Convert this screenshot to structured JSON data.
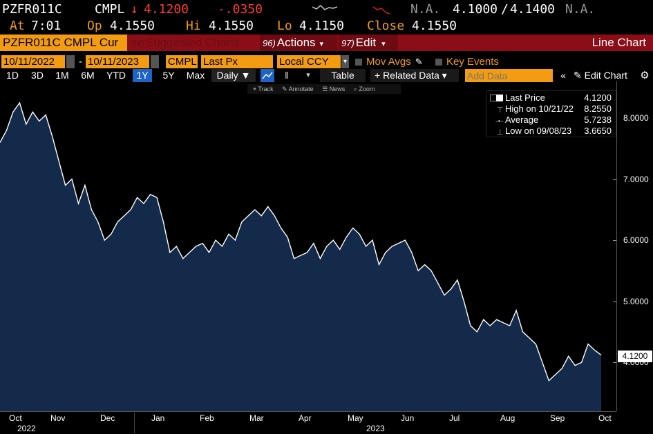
{
  "ticker": {
    "symbol": "PZFR011C",
    "source": "CMPL",
    "direction_arrow": "↓",
    "last": "4.1200",
    "change": "-.0350",
    "na1": "N.A.",
    "bid": "4.1000",
    "slash": "/",
    "ask": "4.1400",
    "na2": "N.A."
  },
  "ticker_row2": {
    "at_label": "At",
    "at_value": "7:01",
    "op_label": "Op",
    "op_value": "4.1550",
    "hi_label": "Hi",
    "hi_value": "4.1550",
    "lo_label": "Lo",
    "lo_value": "4.1150",
    "close_label": "Close",
    "close_value": "4.1550"
  },
  "menubar": {
    "security": "PZFR011C CMPL Cur",
    "suggest_num": "94)",
    "suggest": "Suggested Charts",
    "actions_num": "96)",
    "actions": "Actions",
    "edit_num": "97)",
    "edit": "Edit",
    "title": "Line Chart"
  },
  "controls": {
    "start_date": "10/11/2022",
    "dash": "-",
    "end_date": "10/11/2023",
    "source": "CMPL",
    "field": "Last Px",
    "currency": "Local CCY",
    "mov_avgs": "Mov Avgs",
    "key_events": "Key Events"
  },
  "ranges": [
    "1D",
    "3D",
    "1M",
    "6M",
    "YTD",
    "1Y",
    "5Y",
    "Max"
  ],
  "range_selected": "1Y",
  "periodicity": "Daily ▼",
  "table_label": "Table",
  "related_data": "+ Related Data ▾",
  "add_data_placeholder": "Add Data",
  "edit_chart": "Edit Chart",
  "tools": {
    "track": "Track",
    "annotate": "Annotate",
    "news": "News",
    "zoom": "Zoom"
  },
  "legend": {
    "last_label": "Last Price",
    "last_value": "4.1200",
    "high_label": "High on 10/21/22",
    "high_value": "8.2550",
    "avg_label": "Average",
    "avg_value": "5.7238",
    "low_label": "Low on 09/08/23",
    "low_value": "3.6650"
  },
  "colors": {
    "accent": "#f39c12",
    "menubar": "#8b0d17",
    "fill": "#142a4a",
    "line": "#ffffff",
    "down": "#ff3b30"
  },
  "chart_data": {
    "type": "area",
    "y_ticks": [
      "8.0000",
      "7.0000",
      "6.0000",
      "5.0000",
      "4.0000"
    ],
    "ylim": [
      3.2,
      8.6
    ],
    "x_ticks": [
      "Oct",
      "Nov",
      "Dec",
      "Jan",
      "Feb",
      "Mar",
      "Apr",
      "May",
      "Jun",
      "Jul",
      "Aug",
      "Sep",
      "Oct"
    ],
    "years": [
      "2022",
      "2023"
    ],
    "last_price_label": "4.1200",
    "series": [
      {
        "values": [
          7.6,
          7.8,
          8.1,
          8.25,
          7.9,
          8.1,
          7.95,
          8.05,
          7.7,
          7.3,
          6.9,
          7.0,
          6.6,
          6.9,
          6.5,
          6.3,
          6.0,
          6.1,
          6.3,
          6.4,
          6.5,
          6.7,
          6.6,
          6.75,
          6.7,
          6.3,
          5.8,
          5.9,
          5.7,
          5.8,
          5.9,
          5.95,
          5.8,
          6.0,
          5.9,
          6.1,
          6.0,
          6.3,
          6.4,
          6.5,
          6.4,
          6.55,
          6.4,
          6.2,
          6.05,
          5.7,
          5.75,
          5.8,
          5.95,
          5.7,
          5.9,
          6.0,
          5.85,
          6.05,
          6.2,
          6.1,
          5.9,
          6.0,
          5.6,
          5.8,
          5.9,
          5.95,
          6.0,
          5.8,
          5.5,
          5.6,
          5.5,
          5.3,
          5.1,
          5.2,
          5.35,
          5.0,
          4.6,
          4.5,
          4.7,
          4.6,
          4.7,
          4.65,
          4.6,
          4.85,
          4.5,
          4.4,
          4.3,
          4.0,
          3.7,
          3.8,
          3.9,
          4.1,
          3.95,
          4.0,
          4.3,
          4.2,
          4.12
        ]
      }
    ]
  }
}
